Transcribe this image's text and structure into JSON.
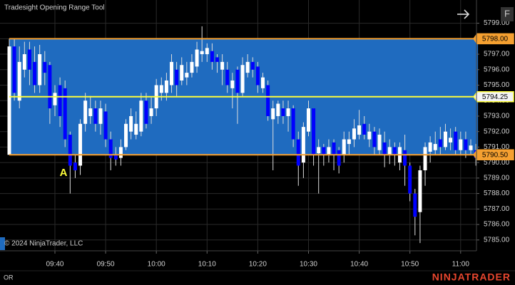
{
  "chart_data": {
    "type": "candlestick",
    "title": "Tradesight Opening Range Tool",
    "copyright": "© 2024 NinjaTrader, LLC",
    "footer_left": "OR",
    "brand": "NINJATRADER",
    "menu_button": "F",
    "annotations": [
      {
        "text": "A"
      }
    ],
    "up_color": "#ffffff",
    "down_color": "#0000ff",
    "range_box_color": "#1f6bbf",
    "levels": [
      {
        "value": 5798.0,
        "label": "5798.00",
        "color": "#f5a030"
      },
      {
        "value": 5794.25,
        "label": "5794.25",
        "color": "#ffff3c"
      },
      {
        "value": 5790.5,
        "label": "5790.50",
        "color": "#f5a030"
      }
    ],
    "open": [
      5790.5,
      5797.5,
      5794,
      5796,
      5797.3,
      5796.5,
      5795,
      5796.5,
      5796.3,
      5793.7,
      5795,
      5794.8,
      5791.8,
      5790,
      5789.8,
      5792.5,
      5793,
      5793.5,
      5792.5,
      5793.3,
      5791.5,
      5790.5,
      5790.3,
      5791,
      5792,
      5791.8,
      5792,
      5794,
      5793,
      5793.5,
      5794.5,
      5794.5,
      5795,
      5796,
      5795.3,
      5795.5,
      5795.8,
      5796.2,
      5797,
      5797,
      5797.2,
      5796.8,
      5796,
      5796,
      5794.8,
      5796,
      5794.5,
      5795.8,
      5796.5,
      5796.2,
      5794.8,
      5795,
      5792.8,
      5793,
      5793.5,
      5793,
      5793.5,
      5791.5,
      5790,
      5792,
      5793.5,
      5790.6,
      5791,
      5790.5,
      5791.3,
      5790.8,
      5790.5,
      5791.2,
      5791.5,
      5791.8,
      5792.5,
      5791.5,
      5792,
      5790.8,
      5791.3,
      5790.5,
      5791,
      5790,
      5790.8,
      5789.8,
      5788,
      5786.8,
      5789.5,
      5790.7,
      5790.8,
      5791.5,
      5791,
      5791.3,
      5792,
      5790.8,
      5791.5,
      5790.8,
      5790.8
    ],
    "high": [
      5798,
      5798,
      5797.5,
      5797.8,
      5797.8,
      5797.5,
      5797.6,
      5797.2,
      5796.5,
      5795,
      5795.5,
      5795.3,
      5792,
      5790.5,
      5792.8,
      5794.5,
      5794.3,
      5794,
      5794,
      5793.8,
      5792,
      5791,
      5791.5,
      5792.8,
      5793.5,
      5793.3,
      5794.5,
      5794.5,
      5794.2,
      5795.4,
      5795.5,
      5795.8,
      5797,
      5796.5,
      5796.8,
      5796.5,
      5797,
      5797.8,
      5798.8,
      5797.7,
      5797.7,
      5797,
      5797,
      5796.5,
      5795.8,
      5796.2,
      5796.8,
      5797,
      5796.8,
      5796.5,
      5795.8,
      5795.3,
      5794,
      5794,
      5794,
      5794,
      5793.7,
      5792,
      5792.6,
      5794,
      5793.5,
      5791.5,
      5791.2,
      5791.5,
      5791.5,
      5791,
      5792,
      5792,
      5792.8,
      5793.4,
      5793,
      5792.5,
      5792.3,
      5792.2,
      5792,
      5791.5,
      5791.3,
      5791.3,
      5791.8,
      5790,
      5788.3,
      5789.8,
      5791.3,
      5791.7,
      5792,
      5792.3,
      5792.5,
      5792.2,
      5792.3,
      5792,
      5792,
      5791.5,
      5791.2
    ],
    "low": [
      5790.5,
      5794,
      5793.5,
      5795.5,
      5795,
      5794.5,
      5794.5,
      5795,
      5792.5,
      5793,
      5792.3,
      5791,
      5788,
      5789,
      5789.2,
      5792,
      5792.5,
      5792,
      5791.8,
      5791,
      5789.5,
      5789.8,
      5789.8,
      5790.8,
      5791.5,
      5791.5,
      5791.7,
      5792.2,
      5792.5,
      5793,
      5794,
      5794,
      5794.5,
      5794.3,
      5795,
      5795,
      5795.5,
      5795.8,
      5796.5,
      5796.5,
      5796,
      5795.8,
      5795,
      5794.5,
      5793.5,
      5792.5,
      5794.3,
      5795.5,
      5795.5,
      5794.5,
      5794.5,
      5792.7,
      5789.5,
      5792.5,
      5792.5,
      5792,
      5791,
      5788.5,
      5789,
      5791.7,
      5789.8,
      5788,
      5789.8,
      5790,
      5789.5,
      5789.3,
      5790,
      5790.5,
      5791,
      5791.5,
      5791.5,
      5791,
      5790.5,
      5790.5,
      5789.7,
      5789.9,
      5789.8,
      5789.5,
      5788.5,
      5787.5,
      5785.3,
      5784.8,
      5788.5,
      5790,
      5790.5,
      5790.5,
      5790.8,
      5790.8,
      5790.5,
      5790.5,
      5790.3,
      5790.5,
      5789.8
    ],
    "close": [
      5797.5,
      5794.5,
      5796.5,
      5797,
      5796,
      5795,
      5797,
      5795.8,
      5793.5,
      5794.5,
      5793,
      5791.5,
      5789.8,
      5789.5,
      5792.5,
      5794,
      5793.5,
      5792.5,
      5793.5,
      5791.5,
      5790.3,
      5790.2,
      5791,
      5792.5,
      5793,
      5792.5,
      5794,
      5792.5,
      5793.5,
      5795,
      5795,
      5795.3,
      5796.5,
      5795,
      5796.3,
      5795.8,
      5796.5,
      5797.3,
      5797.2,
      5797.4,
      5796.5,
      5796.5,
      5796.5,
      5795,
      5795.3,
      5794.5,
      5796.3,
      5796.5,
      5796,
      5795,
      5795.5,
      5793,
      5793.5,
      5793.8,
      5793,
      5793.5,
      5791.5,
      5789.8,
      5792.3,
      5793.5,
      5790.5,
      5791,
      5790.5,
      5791,
      5790.5,
      5789.8,
      5791.5,
      5791.5,
      5792.2,
      5792.4,
      5791.8,
      5792,
      5791,
      5791.8,
      5790.5,
      5791,
      5790.5,
      5791,
      5789.8,
      5788,
      5786.5,
      5789.5,
      5791,
      5791.3,
      5791.2,
      5791,
      5792,
      5791.6,
      5790.8,
      5791.5,
      5790.8,
      5791.1,
      5790.3
    ],
    "ylim": [
      5784.3,
      5800.5
    ],
    "yticks": [
      {
        "value": 5799,
        "label": "5799.00"
      },
      {
        "value": 5798,
        "label": "5798.00"
      },
      {
        "value": 5797,
        "label": "5797.00"
      },
      {
        "value": 5796,
        "label": "5796.00"
      },
      {
        "value": 5795,
        "label": "5795.00"
      },
      {
        "value": 5794,
        "label": "5794.00"
      },
      {
        "value": 5793,
        "label": "5793.00"
      },
      {
        "value": 5792,
        "label": "5792.00"
      },
      {
        "value": 5791,
        "label": "5791.00"
      },
      {
        "value": 5790,
        "label": "5790.00"
      },
      {
        "value": 5789,
        "label": "5789.00"
      },
      {
        "value": 5788,
        "label": "5788.00"
      },
      {
        "value": 5787,
        "label": "5787.00"
      },
      {
        "value": 5786,
        "label": "5786.00"
      },
      {
        "value": 5785,
        "label": "5785.00"
      }
    ],
    "xticks": [
      {
        "value": 9,
        "label": "09:40"
      },
      {
        "value": 19,
        "label": "09:50"
      },
      {
        "value": 29,
        "label": "10:00"
      },
      {
        "value": 39,
        "label": "10:10"
      },
      {
        "value": 49,
        "label": "10:20"
      },
      {
        "value": 59,
        "label": "10:30"
      },
      {
        "value": 69,
        "label": "10:40"
      },
      {
        "value": 79,
        "label": "10:50"
      },
      {
        "value": 89,
        "label": "11:00"
      }
    ],
    "grid": true
  }
}
